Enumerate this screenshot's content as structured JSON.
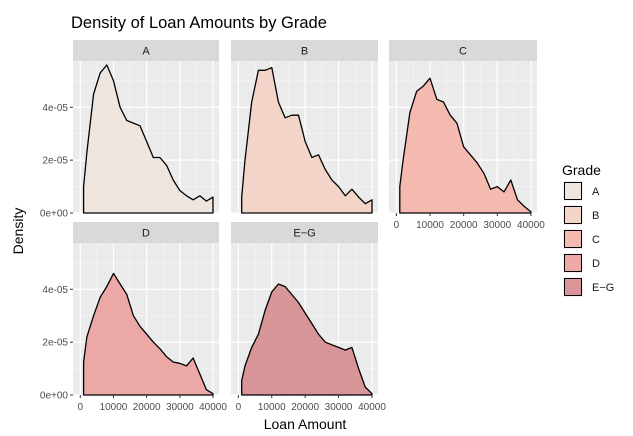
{
  "chart_data": {
    "type": "area",
    "title": "Density of Loan Amounts by Grade",
    "xlabel": "Loan Amount",
    "ylabel": "Density",
    "xlim": [
      0,
      40000
    ],
    "ylim": [
      0,
      5.75e-05
    ],
    "x_ticks": [
      0,
      10000,
      20000,
      30000,
      40000
    ],
    "x_tick_labels": [
      "0",
      "10000",
      "20000",
      "30000",
      "40000"
    ],
    "y_ticks": [
      0,
      2e-05,
      4e-05
    ],
    "y_tick_labels": [
      "0e+00",
      "2e-05",
      "4e-05"
    ],
    "grid": true,
    "legend": {
      "title": "Grade",
      "position": "right"
    },
    "panels": [
      {
        "label": "A",
        "color": "#F0E4DE",
        "x": [
          1000,
          2000,
          4000,
          6000,
          8000,
          10000,
          12000,
          14000,
          16000,
          18000,
          20000,
          22000,
          24000,
          26000,
          28000,
          30000,
          32000,
          34000,
          36000,
          38000,
          40000
        ],
        "y": [
          1e-05,
          2.3e-05,
          4.5e-05,
          5.3e-05,
          5.6e-05,
          5e-05,
          4e-05,
          3.5e-05,
          3.4e-05,
          3.3e-05,
          2.7e-05,
          2.1e-05,
          2.1e-05,
          1.8e-05,
          1.25e-05,
          8.5e-06,
          6.5e-06,
          5e-06,
          6.5e-06,
          4.5e-06,
          6e-06
        ]
      },
      {
        "label": "B",
        "color": "#F3D2C5",
        "x": [
          1000,
          2000,
          4000,
          6000,
          8000,
          10000,
          12000,
          14000,
          16000,
          18000,
          20000,
          22000,
          24000,
          26000,
          28000,
          30000,
          32000,
          34000,
          36000,
          38000,
          40000
        ],
        "y": [
          6e-06,
          2e-05,
          4.2e-05,
          5.4e-05,
          5.4e-05,
          5.5e-05,
          4.2e-05,
          3.6e-05,
          3.7e-05,
          3.7e-05,
          2.7e-05,
          2.1e-05,
          2.2e-05,
          1.65e-05,
          1.25e-05,
          1e-05,
          6.5e-06,
          9e-06,
          6e-06,
          3.5e-06,
          5e-06
        ]
      },
      {
        "label": "C",
        "color": "#F5B5A8",
        "x": [
          1000,
          2000,
          4000,
          6000,
          8000,
          10000,
          12000,
          14000,
          16000,
          18000,
          20000,
          22000,
          24000,
          26000,
          28000,
          30000,
          32000,
          34000,
          36000,
          38000,
          40000
        ],
        "y": [
          1e-05,
          2e-05,
          3.8e-05,
          4.6e-05,
          4.8e-05,
          5.1e-05,
          4.3e-05,
          4.2e-05,
          3.7e-05,
          3.4e-05,
          2.5e-05,
          2.2e-05,
          1.9e-05,
          1.5e-05,
          9e-06,
          1e-05,
          8e-06,
          1.25e-05,
          5e-06,
          2.5e-06,
          5e-07
        ]
      },
      {
        "label": "D",
        "color": "#EBA19E",
        "x": [
          1000,
          2000,
          4000,
          6000,
          8000,
          10000,
          12000,
          14000,
          16000,
          18000,
          20000,
          22000,
          24000,
          26000,
          28000,
          30000,
          32000,
          34000,
          36000,
          38000,
          40000
        ],
        "y": [
          1.25e-05,
          2.2e-05,
          3e-05,
          3.7e-05,
          4.1e-05,
          4.6e-05,
          4.2e-05,
          3.8e-05,
          3e-05,
          2.6e-05,
          2.3e-05,
          2e-05,
          1.75e-05,
          1.45e-05,
          1.25e-05,
          1.2e-05,
          1.1e-05,
          1.4e-05,
          8e-06,
          2e-06,
          5e-07
        ]
      },
      {
        "label": "E−G",
        "color": "#D58C8F",
        "x": [
          1000,
          2000,
          4000,
          6000,
          8000,
          10000,
          12000,
          14000,
          16000,
          18000,
          20000,
          22000,
          24000,
          26000,
          28000,
          30000,
          32000,
          34000,
          36000,
          38000,
          40000
        ],
        "y": [
          5.5e-06,
          1.1e-05,
          1.8e-05,
          2.3e-05,
          3.2e-05,
          3.9e-05,
          4.2e-05,
          4.1e-05,
          3.8e-05,
          3.5e-05,
          3.1e-05,
          2.7e-05,
          2.3e-05,
          2e-05,
          1.9e-05,
          1.8e-05,
          1.7e-05,
          1.8e-05,
          1e-05,
          3e-06,
          5e-07
        ]
      }
    ]
  }
}
